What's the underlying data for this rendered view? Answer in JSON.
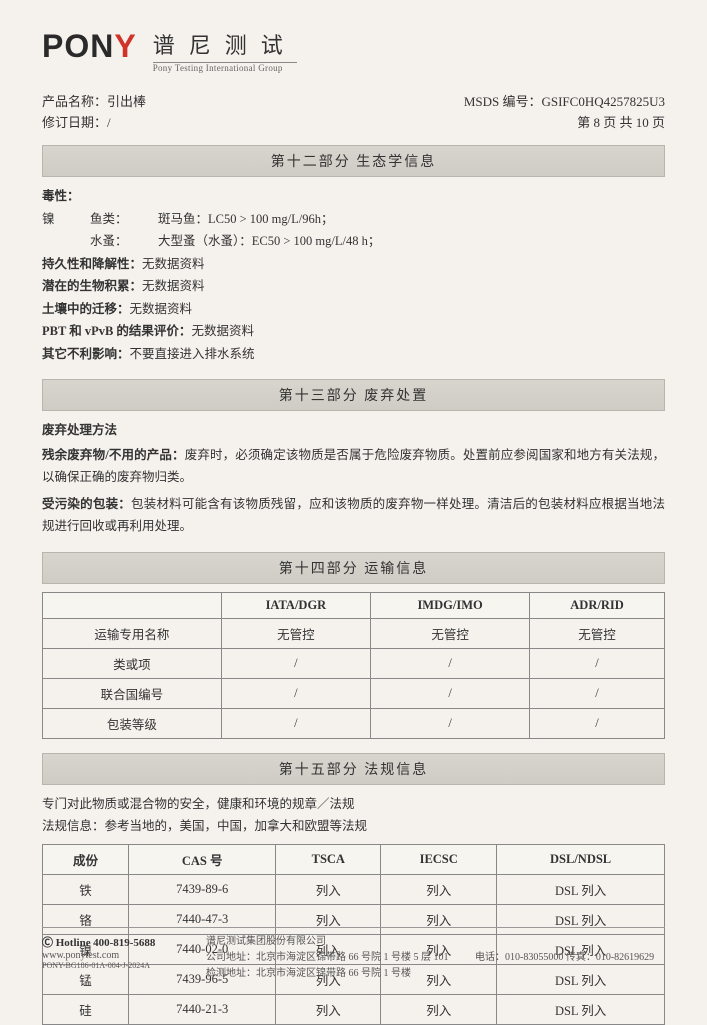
{
  "brand": {
    "logo": "PON",
    "logo_accent": "Y",
    "cn": "谱尼测试",
    "en": "Pony Testing International Group"
  },
  "meta": {
    "product_label": "产品名称：",
    "product_value": "引出棒",
    "rev_label": "修订日期：",
    "rev_value": "/",
    "msds_label": "MSDS 编号：",
    "msds_value": "GSIFC0HQ4257825U3",
    "page": "第 8 页 共 10 页"
  },
  "s12": {
    "title": "第十二部分  生态学信息",
    "tox_label": "毒性：",
    "nickel": "镍",
    "fish_label": "鱼类：",
    "fish_text": "斑马鱼：LC50 > 100 mg/L/96h；",
    "daphnia_label": "水蚤：",
    "daphnia_text": "大型蚤（水蚤）：EC50 > 100 mg/L/48 h；",
    "persist_label": "持久性和降解性：",
    "persist_val": "无数据资料",
    "bio_label": "潜在的生物积累：",
    "bio_val": "无数据资料",
    "soil_label": "土壤中的迁移：",
    "soil_val": "无数据资料",
    "pbt_label": "PBT 和 vPvB 的结果评价：",
    "pbt_val": "无数据资料",
    "other_label": "其它不利影响：",
    "other_val": "不要直接进入排水系统"
  },
  "s13": {
    "title": "第十三部分  废弃处置",
    "method_title": "废弃处理方法",
    "p1_label": "残余废弃物/不用的产品：",
    "p1_text": "废弃时，必须确定该物质是否属于危险废弃物质。处置前应参阅国家和地方有关法规，以确保正确的废弃物归类。",
    "p2_label": "受污染的包装：",
    "p2_text": "包装材料可能含有该物质残留，应和该物质的废弃物一样处理。清洁后的包装材料应根据当地法规进行回收或再利用处理。"
  },
  "s14": {
    "title": "第十四部分  运输信息",
    "cols": [
      "",
      "IATA/DGR",
      "IMDG/IMO",
      "ADR/RID"
    ],
    "rows": [
      [
        "运输专用名称",
        "无管控",
        "无管控",
        "无管控"
      ],
      [
        "类或项",
        "/",
        "/",
        "/"
      ],
      [
        "联合国编号",
        "/",
        "/",
        "/"
      ],
      [
        "包装等级",
        "/",
        "/",
        "/"
      ]
    ]
  },
  "s15": {
    "title": "第十五部分  法规信息",
    "line1": "专门对此物质或混合物的安全，健康和环境的规章／法规",
    "line2": "法规信息：参考当地的，美国，中国，加拿大和欧盟等法规",
    "cols": [
      "成份",
      "CAS 号",
      "TSCA",
      "IECSC",
      "DSL/NDSL"
    ],
    "rows": [
      [
        "铁",
        "7439-89-6",
        "列入",
        "列入",
        "DSL 列入"
      ],
      [
        "铬",
        "7440-47-3",
        "列入",
        "列入",
        "DSL 列入"
      ],
      [
        "镍",
        "7440-02-0",
        "列入",
        "列入",
        "DSL 列入"
      ],
      [
        "锰",
        "7439-96-5",
        "列入",
        "列入",
        "DSL 列入"
      ],
      [
        "硅",
        "7440-21-3",
        "列入",
        "列入",
        "DSL 列入"
      ]
    ]
  },
  "footer": {
    "hotline_label": "Ⓒ Hotline",
    "hotline": "400-819-5688",
    "site": "www.ponytest.com",
    "code": "PONY-BG186-01A-004-J-2024A",
    "company": "谱尼测试集团股份有限公司",
    "addr1_label": "公司地址：",
    "addr1": "北京市海淀区锦带路 66 号院 1 号楼 5 层 101",
    "addr2_label": "检测地址：",
    "addr2": "北京市海淀区锦带路 66 号院 1 号楼",
    "tel": "电话：010-83055000  传真：010-82619629"
  }
}
